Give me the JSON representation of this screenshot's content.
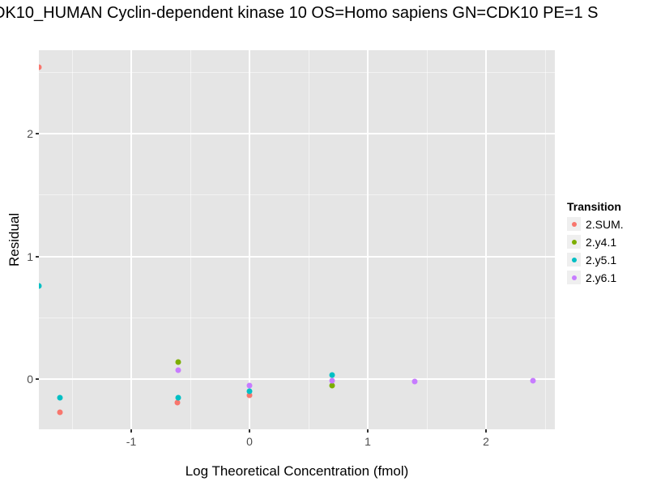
{
  "chart_data": {
    "type": "scatter",
    "title": "DK10_HUMAN Cyclin-dependent kinase 10 OS=Homo sapiens GN=CDK10 PE=1 S",
    "xlabel": "Log Theoretical Concentration (fmol)",
    "ylabel": "Residual",
    "xlim": [
      -1.781,
      2.582
    ],
    "ylim": [
      -0.409,
      2.68
    ],
    "grid": true,
    "panel_background": "#E5E5E5",
    "grid_color": "#FFFFFF",
    "x_ticks": {
      "values": [
        -1,
        0,
        1,
        2
      ],
      "labels": [
        "-1",
        "0",
        "1",
        "2"
      ]
    },
    "x_minor_ticks": [
      -1.5,
      -0.5,
      0.5,
      1.5,
      2.5
    ],
    "y_ticks": {
      "values": [
        0,
        1,
        2
      ],
      "labels": [
        "0",
        "1",
        "2"
      ]
    },
    "y_minor_ticks": [
      0.5,
      1.5,
      2.5
    ],
    "legend_title": "Transition",
    "legend_position": "right",
    "series": [
      {
        "name": "2.SUM.",
        "color": "#F8766D",
        "points": [
          [
            -1.78,
            2.54
          ],
          [
            -1.6,
            -0.27
          ],
          [
            -0.61,
            -0.19
          ],
          [
            0.0,
            -0.13
          ]
        ]
      },
      {
        "name": "2.y4.1",
        "color": "#7CAE00",
        "points": [
          [
            -0.6,
            0.14
          ],
          [
            0.7,
            -0.05
          ]
        ]
      },
      {
        "name": "2.y5.1",
        "color": "#00BFC4",
        "points": [
          [
            -1.78,
            0.76
          ],
          [
            -1.6,
            -0.15
          ],
          [
            -0.6,
            -0.15
          ],
          [
            0.0,
            -0.1
          ],
          [
            0.7,
            0.03
          ]
        ]
      },
      {
        "name": "2.y6.1",
        "color": "#C77CFF",
        "points": [
          [
            -0.6,
            0.07
          ],
          [
            0.0,
            -0.05
          ],
          [
            0.7,
            -0.01
          ],
          [
            1.4,
            -0.02
          ],
          [
            2.4,
            -0.01
          ]
        ]
      }
    ]
  }
}
